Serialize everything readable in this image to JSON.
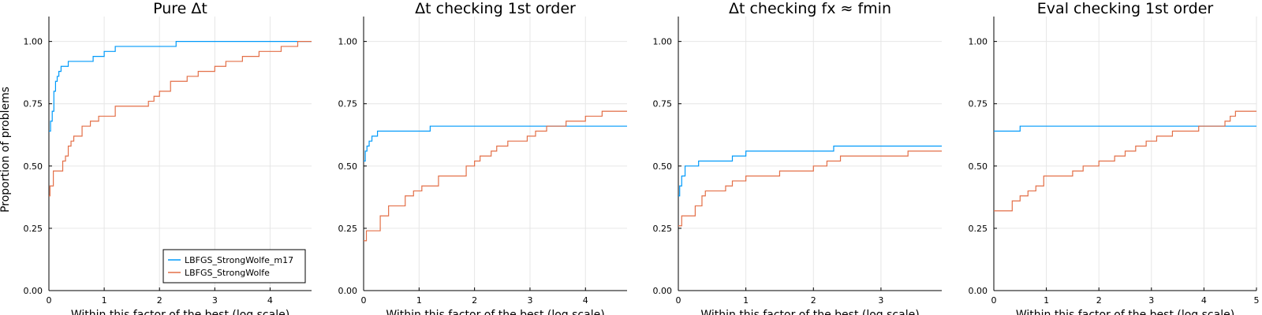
{
  "figure": {
    "ylabel": "Proportion of problems",
    "xlabel": "Within this factor of the best (log scale)"
  },
  "chart_data": [
    {
      "type": "line",
      "title": "Pure Δt",
      "xlim": [
        0,
        4.75
      ],
      "ylim": [
        0,
        1.1
      ],
      "xticks": [
        0,
        1,
        2,
        3,
        4
      ],
      "yticks": [
        0.0,
        0.25,
        0.5,
        0.75,
        1.0
      ],
      "ytick_labels": [
        "0.00",
        "0.25",
        "0.50",
        "0.75",
        "1.00"
      ],
      "grid": true,
      "legend": {
        "position": "bottom-right",
        "visible": true
      },
      "series": [
        {
          "name": "LBFGS_StrongWolfe_m17",
          "color": "#009AFA",
          "points": [
            [
              0,
              0.64
            ],
            [
              0.03,
              0.68
            ],
            [
              0.06,
              0.72
            ],
            [
              0.09,
              0.8
            ],
            [
              0.12,
              0.84
            ],
            [
              0.15,
              0.86
            ],
            [
              0.18,
              0.88
            ],
            [
              0.22,
              0.9
            ],
            [
              0.35,
              0.92
            ],
            [
              0.8,
              0.94
            ],
            [
              1.0,
              0.96
            ],
            [
              1.2,
              0.98
            ],
            [
              2.3,
              1.0
            ],
            [
              4.75,
              1.0
            ]
          ]
        },
        {
          "name": "LBFGS_StrongWolfe",
          "color": "#E36F47",
          "points": [
            [
              0,
              0.38
            ],
            [
              0.02,
              0.42
            ],
            [
              0.08,
              0.48
            ],
            [
              0.25,
              0.52
            ],
            [
              0.3,
              0.54
            ],
            [
              0.35,
              0.58
            ],
            [
              0.4,
              0.6
            ],
            [
              0.45,
              0.62
            ],
            [
              0.6,
              0.66
            ],
            [
              0.75,
              0.68
            ],
            [
              0.9,
              0.7
            ],
            [
              1.2,
              0.74
            ],
            [
              1.8,
              0.76
            ],
            [
              1.9,
              0.78
            ],
            [
              2.0,
              0.8
            ],
            [
              2.2,
              0.84
            ],
            [
              2.5,
              0.86
            ],
            [
              2.7,
              0.88
            ],
            [
              3.0,
              0.9
            ],
            [
              3.2,
              0.92
            ],
            [
              3.5,
              0.94
            ],
            [
              3.8,
              0.96
            ],
            [
              4.2,
              0.98
            ],
            [
              4.5,
              1.0
            ],
            [
              4.75,
              1.0
            ]
          ]
        }
      ]
    },
    {
      "type": "line",
      "title": "Δt checking 1st order",
      "xlim": [
        0,
        4.75
      ],
      "ylim": [
        0,
        1.1
      ],
      "xticks": [
        0,
        1,
        2,
        3,
        4
      ],
      "yticks": [
        0.0,
        0.25,
        0.5,
        0.75,
        1.0
      ],
      "ytick_labels": [
        "0.00",
        "0.25",
        "0.50",
        "0.75",
        "1.00"
      ],
      "grid": true,
      "legend": {
        "visible": false
      },
      "series": [
        {
          "name": "LBFGS_StrongWolfe_m17",
          "color": "#009AFA",
          "points": [
            [
              0,
              0.52
            ],
            [
              0.03,
              0.56
            ],
            [
              0.06,
              0.58
            ],
            [
              0.1,
              0.6
            ],
            [
              0.15,
              0.62
            ],
            [
              0.25,
              0.64
            ],
            [
              1.2,
              0.66
            ],
            [
              4.75,
              0.66
            ]
          ]
        },
        {
          "name": "LBFGS_StrongWolfe",
          "color": "#E36F47",
          "points": [
            [
              0,
              0.2
            ],
            [
              0.05,
              0.24
            ],
            [
              0.3,
              0.3
            ],
            [
              0.45,
              0.34
            ],
            [
              0.75,
              0.38
            ],
            [
              0.9,
              0.4
            ],
            [
              1.05,
              0.42
            ],
            [
              1.35,
              0.46
            ],
            [
              1.85,
              0.5
            ],
            [
              2.0,
              0.52
            ],
            [
              2.1,
              0.54
            ],
            [
              2.3,
              0.56
            ],
            [
              2.4,
              0.58
            ],
            [
              2.6,
              0.6
            ],
            [
              2.95,
              0.62
            ],
            [
              3.1,
              0.64
            ],
            [
              3.3,
              0.66
            ],
            [
              3.65,
              0.68
            ],
            [
              4.0,
              0.7
            ],
            [
              4.3,
              0.72
            ],
            [
              4.75,
              0.72
            ]
          ]
        }
      ]
    },
    {
      "type": "line",
      "title": "Δt checking fx ≈ fmin",
      "xlim": [
        0,
        3.9
      ],
      "ylim": [
        0,
        1.1
      ],
      "xticks": [
        0,
        1,
        2,
        3
      ],
      "yticks": [
        0.0,
        0.25,
        0.5,
        0.75,
        1.0
      ],
      "ytick_labels": [
        "0.00",
        "0.25",
        "0.50",
        "0.75",
        "1.00"
      ],
      "grid": true,
      "legend": {
        "visible": false
      },
      "series": [
        {
          "name": "LBFGS_StrongWolfe_m17",
          "color": "#009AFA",
          "points": [
            [
              0,
              0.38
            ],
            [
              0.02,
              0.42
            ],
            [
              0.05,
              0.46
            ],
            [
              0.1,
              0.5
            ],
            [
              0.3,
              0.52
            ],
            [
              0.8,
              0.54
            ],
            [
              1.0,
              0.56
            ],
            [
              2.3,
              0.58
            ],
            [
              3.9,
              0.58
            ]
          ]
        },
        {
          "name": "LBFGS_StrongWolfe",
          "color": "#E36F47",
          "points": [
            [
              0,
              0.26
            ],
            [
              0.05,
              0.3
            ],
            [
              0.25,
              0.34
            ],
            [
              0.35,
              0.38
            ],
            [
              0.4,
              0.4
            ],
            [
              0.7,
              0.42
            ],
            [
              0.8,
              0.44
            ],
            [
              1.0,
              0.46
            ],
            [
              1.5,
              0.48
            ],
            [
              2.0,
              0.5
            ],
            [
              2.2,
              0.52
            ],
            [
              2.4,
              0.54
            ],
            [
              3.4,
              0.56
            ],
            [
              3.9,
              0.56
            ]
          ]
        }
      ]
    },
    {
      "type": "line",
      "title": "Eval checking 1st order",
      "xlim": [
        0,
        5
      ],
      "ylim": [
        0,
        1.1
      ],
      "xticks": [
        0,
        1,
        2,
        3,
        4,
        5
      ],
      "yticks": [
        0.0,
        0.25,
        0.5,
        0.75,
        1.0
      ],
      "ytick_labels": [
        "0.00",
        "0.25",
        "0.50",
        "0.75",
        "1.00"
      ],
      "grid": true,
      "legend": {
        "visible": false
      },
      "series": [
        {
          "name": "LBFGS_StrongWolfe_m17",
          "color": "#009AFA",
          "points": [
            [
              0,
              0.64
            ],
            [
              0.5,
              0.66
            ],
            [
              5,
              0.66
            ]
          ]
        },
        {
          "name": "LBFGS_StrongWolfe",
          "color": "#E36F47",
          "points": [
            [
              0,
              0.32
            ],
            [
              0.35,
              0.36
            ],
            [
              0.5,
              0.38
            ],
            [
              0.65,
              0.4
            ],
            [
              0.8,
              0.42
            ],
            [
              0.95,
              0.46
            ],
            [
              1.5,
              0.48
            ],
            [
              1.7,
              0.5
            ],
            [
              2.0,
              0.52
            ],
            [
              2.3,
              0.54
            ],
            [
              2.5,
              0.56
            ],
            [
              2.7,
              0.58
            ],
            [
              2.9,
              0.6
            ],
            [
              3.1,
              0.62
            ],
            [
              3.4,
              0.64
            ],
            [
              3.9,
              0.66
            ],
            [
              4.4,
              0.68
            ],
            [
              4.5,
              0.7
            ],
            [
              4.6,
              0.72
            ],
            [
              5,
              0.72
            ]
          ]
        }
      ]
    }
  ]
}
